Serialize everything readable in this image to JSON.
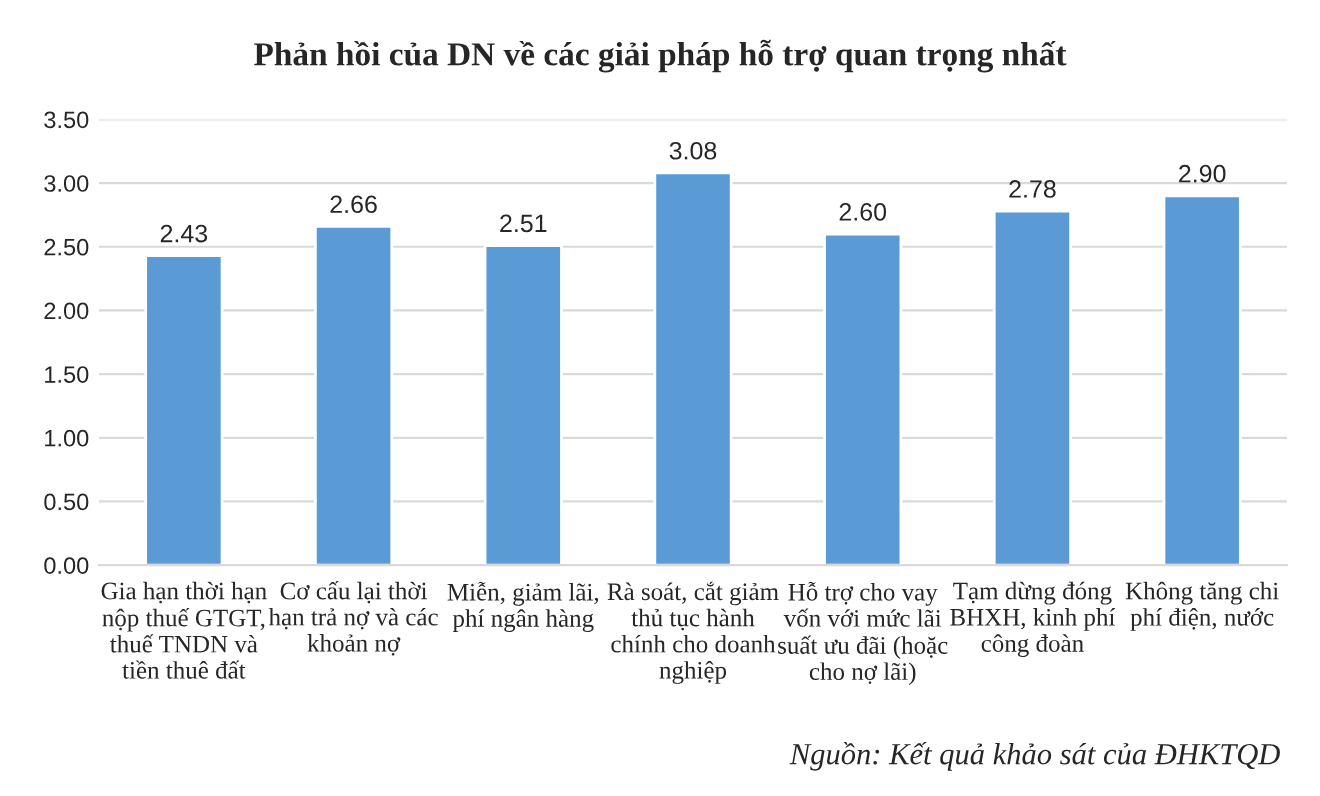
{
  "chart_data": {
    "type": "bar",
    "title": "Phản hồi của DN về các giải pháp hỗ trợ quan trọng nhất",
    "categories": [
      "Gia hạn thời hạn\nnộp thuế GTGT,\nthuế TNDN và\ntiền thuê đất",
      "Cơ cấu lại thời\nhạn trả nợ và các\nkhoản nợ",
      "Miễn, giảm lãi,\nphí ngân hàng",
      "Rà soát, cắt giảm\nthủ tục hành\nchính cho doanh\nnghiệp",
      "Hỗ trợ cho vay\nvốn với mức lãi\nsuất ưu đãi (hoặc\ncho nợ lãi)",
      "Tạm dừng đóng\nBHXH, kinh phí\ncông đoàn",
      "Không tăng chi\nphí điện, nước"
    ],
    "values": [
      2.43,
      2.66,
      2.51,
      3.08,
      2.6,
      2.78,
      2.9
    ],
    "value_labels": [
      "2.43",
      "2.66",
      "2.51",
      "3.08",
      "2.60",
      "2.78",
      "2.90"
    ],
    "color": "#5b9bd5",
    "ylim": [
      0,
      3.5
    ],
    "yticks": [
      {
        "value": 0,
        "label": "0.00"
      },
      {
        "value": 0.5,
        "label": "0.50"
      },
      {
        "value": 1,
        "label": "1.00"
      },
      {
        "value": 1.5,
        "label": "1.50"
      },
      {
        "value": 2,
        "label": "2.00"
      },
      {
        "value": 2.5,
        "label": "2.50"
      },
      {
        "value": 3,
        "label": "3.00"
      },
      {
        "value": 3.5,
        "label": "3.50"
      }
    ],
    "grid": "y",
    "legend": false,
    "annotations": [
      "Nguồn: Kết quả khảo sát của ĐHKTQD"
    ]
  }
}
